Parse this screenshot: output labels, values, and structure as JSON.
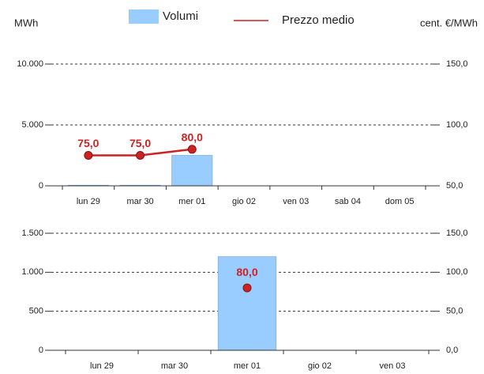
{
  "chart_data": [
    {
      "type": "bar-line",
      "y_label": "MWh",
      "y2_label": "cent. €/MWh",
      "categories": [
        "lun 29",
        "mar 30",
        "mer 01",
        "gio 02",
        "ven 03",
        "sab 04",
        "dom 05"
      ],
      "series": [
        {
          "name": "Volumi",
          "type": "bar",
          "color": "#99ccff",
          "values": [
            50,
            50,
            2500,
            null,
            null,
            null,
            null
          ]
        },
        {
          "name": "Prezzo medio",
          "type": "line",
          "axis": "y2",
          "color": "#cc2222",
          "values": [
            75,
            75,
            80,
            null,
            null,
            null,
            null
          ],
          "value_labels": [
            "75,0",
            "75,0",
            "80,0",
            null,
            null,
            null,
            null
          ]
        }
      ],
      "ylim": [
        0,
        10000
      ],
      "yticks": [
        0,
        {
          "value": 5000,
          "label": "5.000"
        },
        {
          "value": 10000,
          "label": "10.000"
        }
      ],
      "y2lim": [
        50,
        150
      ],
      "y2ticks": [
        {
          "value": 50,
          "label": "50,0"
        },
        {
          "value": 100,
          "label": "100,0"
        },
        {
          "value": 150,
          "label": "150,0"
        }
      ],
      "grid": true
    },
    {
      "type": "bar-line",
      "categories": [
        "lun 29",
        "mar 30",
        "mer 01",
        "gio 02",
        "ven 03"
      ],
      "series": [
        {
          "type": "bar",
          "color": "#99ccff",
          "values": [
            null,
            null,
            1200,
            null,
            null
          ]
        },
        {
          "type": "point",
          "axis": "y2",
          "color": "#cc2222",
          "values": [
            null,
            null,
            80,
            null,
            null
          ],
          "value_labels": [
            null,
            null,
            "80,0",
            null,
            null
          ]
        }
      ],
      "ylim": [
        0,
        1500
      ],
      "yticks": [
        0,
        500,
        {
          "value": 1000,
          "label": "1.000"
        },
        {
          "value": 1500,
          "label": "1.500"
        }
      ],
      "y2lim": [
        0,
        150
      ],
      "y2ticks": [
        {
          "value": 0,
          "label": "0,0"
        },
        {
          "value": 50,
          "label": "50,0"
        },
        {
          "value": 100,
          "label": "100,0"
        },
        {
          "value": 150,
          "label": "150,0"
        }
      ],
      "grid": true
    }
  ]
}
